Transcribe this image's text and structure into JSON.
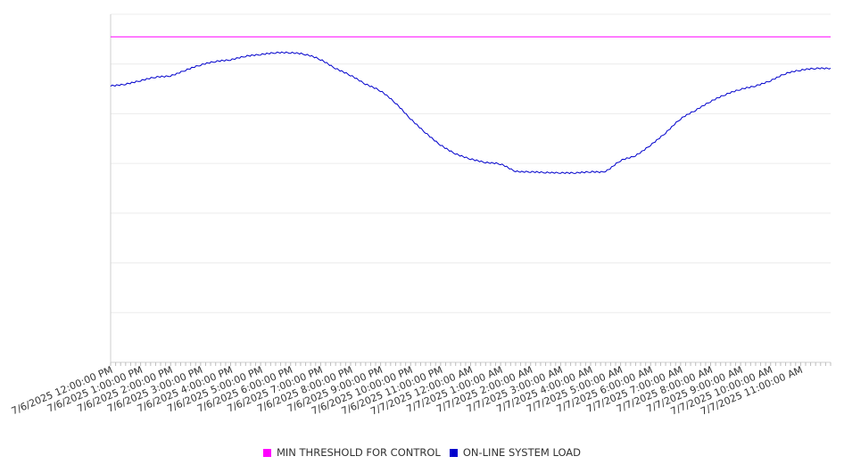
{
  "chart_data": {
    "type": "line",
    "title": "",
    "xlabel": "",
    "ylabel": "",
    "x_start": "7/6/2025 12:00:00 PM",
    "x_end": "7/7/2025 12:00:00 PM",
    "x_tick_labels": [
      "7/6/2025 12:00:00 PM",
      "7/6/2025 1:00:00 PM",
      "7/6/2025 2:00:00 PM",
      "7/6/2025 3:00:00 PM",
      "7/6/2025 4:00:00 PM",
      "7/6/2025 5:00:00 PM",
      "7/6/2025 6:00:00 PM",
      "7/6/2025 7:00:00 PM",
      "7/6/2025 8:00:00 PM",
      "7/6/2025 9:00:00 PM",
      "7/6/2025 10:00:00 PM",
      "7/6/2025 11:00:00 PM",
      "7/7/2025 12:00:00 AM",
      "7/7/2025 1:00:00 AM",
      "7/7/2025 2:00:00 AM",
      "7/7/2025 3:00:00 AM",
      "7/7/2025 4:00:00 AM",
      "7/7/2025 5:00:00 AM",
      "7/7/2025 6:00:00 AM",
      "7/7/2025 7:00:00 AM",
      "7/7/2025 8:00:00 AM",
      "7/7/2025 9:00:00 AM",
      "7/7/2025 10:00:00 AM",
      "7/7/2025 11:00:00 AM"
    ],
    "y_gridlines": 7,
    "grid": true,
    "legend_position": "bottom-center",
    "series": [
      {
        "name": "MIN THRESHOLD FOR CONTROL",
        "color": "#ff00ff",
        "x_hours": [
          0,
          24
        ],
        "values": [
          0.935,
          0.935
        ]
      },
      {
        "name": "ON-LINE SYSTEM LOAD",
        "color": "#0000cc",
        "x_hours": [
          0,
          0.5,
          1,
          1.5,
          2,
          2.5,
          3,
          3.5,
          4,
          4.5,
          5,
          5.5,
          6,
          6.5,
          7,
          7.5,
          8,
          8.5,
          9,
          9.5,
          10,
          10.5,
          11,
          11.5,
          12,
          12.5,
          13,
          13.5,
          14,
          14.5,
          15,
          15.5,
          16,
          16.5,
          17,
          17.5,
          18,
          18.5,
          19,
          19.5,
          20,
          20.5,
          21,
          21.5,
          22,
          22.5,
          23,
          23.5,
          24
        ],
        "values": [
          0.795,
          0.8,
          0.81,
          0.82,
          0.824,
          0.84,
          0.855,
          0.865,
          0.87,
          0.88,
          0.885,
          0.89,
          0.89,
          0.885,
          0.87,
          0.845,
          0.825,
          0.8,
          0.78,
          0.745,
          0.7,
          0.66,
          0.625,
          0.6,
          0.585,
          0.575,
          0.57,
          0.55,
          0.548,
          0.546,
          0.545,
          0.545,
          0.548,
          0.55,
          0.58,
          0.595,
          0.625,
          0.66,
          0.7,
          0.725,
          0.75,
          0.77,
          0.785,
          0.795,
          0.81,
          0.83,
          0.84,
          0.845,
          0.845
        ]
      }
    ],
    "ylim": [
      0,
      1.0
    ]
  }
}
